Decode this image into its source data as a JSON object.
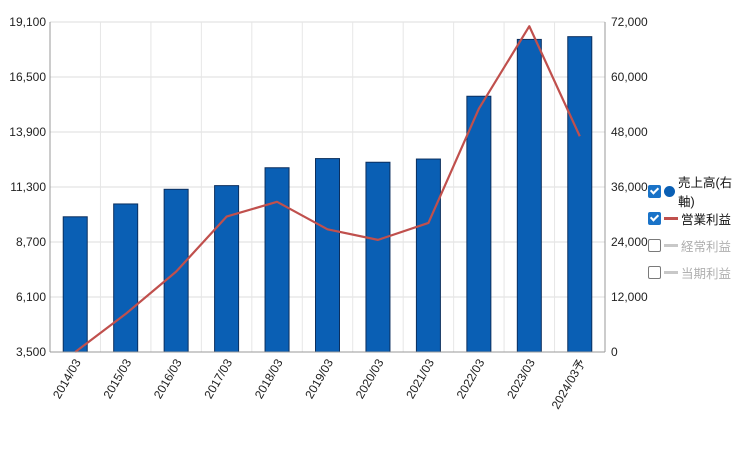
{
  "chart_data": {
    "type": "bar+line",
    "categories": [
      "2014/03",
      "2015/03",
      "2016/03",
      "2017/03",
      "2018/03",
      "2019/03",
      "2020/03",
      "2021/03",
      "2022/03",
      "2023/03",
      "2024/03予"
    ],
    "y_left": {
      "ticks": [
        "3,500",
        "6,100",
        "8,700",
        "11,300",
        "13,900",
        "16,500",
        "19,100"
      ],
      "range": [
        3500,
        19100
      ]
    },
    "y_right": {
      "ticks": [
        "0",
        "12,000",
        "24,000",
        "36,000",
        "48,000",
        "60,000",
        "72,000"
      ],
      "range": [
        0,
        72000
      ]
    },
    "series": [
      {
        "name": "売上高(右軸)",
        "type": "bar",
        "axis": "right",
        "color": "#0a5fb4",
        "values": [
          29500,
          32300,
          35500,
          36300,
          40200,
          42200,
          41400,
          42100,
          55800,
          68200,
          68800
        ]
      },
      {
        "name": "営業利益",
        "type": "line",
        "axis": "left",
        "color": "#c0504d",
        "values": [
          3500,
          5300,
          7300,
          9900,
          10600,
          9300,
          8800,
          9600,
          15000,
          18900,
          13700
        ]
      }
    ],
    "legend": [
      {
        "label": "売上高(右軸)",
        "checked": true,
        "symbol": "dot",
        "color": "#0a5fb4"
      },
      {
        "label": "営業利益",
        "checked": true,
        "symbol": "line",
        "color": "#c0504d"
      },
      {
        "label": "経常利益",
        "checked": false,
        "symbol": "line",
        "color": "#c8c8c8"
      },
      {
        "label": "当期利益",
        "checked": false,
        "symbol": "line",
        "color": "#c8c8c8"
      }
    ],
    "legend_position": "right"
  }
}
